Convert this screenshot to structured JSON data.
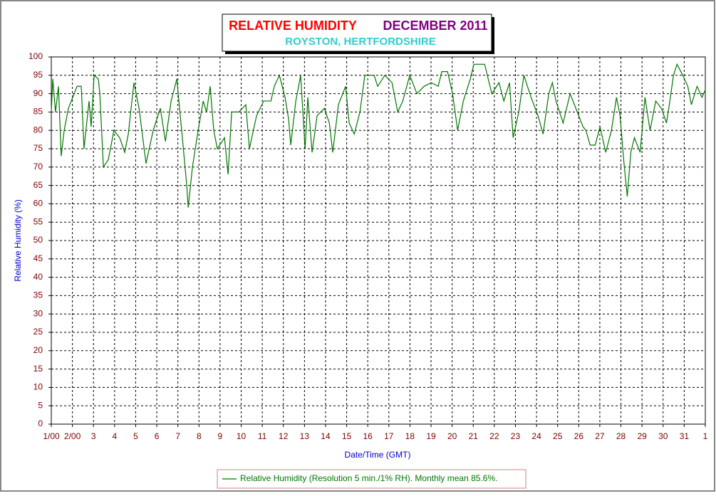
{
  "chart_data": {
    "type": "line",
    "title": "RELATIVE HUMIDITY",
    "title_date": "DECEMBER 2011",
    "subtitle": "ROYSTON, HERTFORDSHIRE",
    "x_label": "Date/Time (GMT)",
    "y_label": "Relative Humidity (%)",
    "xlim": [
      1,
      32
    ],
    "xticks": [
      {
        "value": 1,
        "label": "1/00"
      },
      {
        "value": 2,
        "label": "2/00"
      },
      3,
      4,
      5,
      6,
      7,
      8,
      9,
      10,
      11,
      12,
      13,
      14,
      15,
      16,
      17,
      18,
      19,
      20,
      21,
      22,
      23,
      24,
      25,
      26,
      27,
      28,
      29,
      30,
      31,
      {
        "value": 32,
        "label": "1"
      }
    ],
    "ylim": [
      0,
      100
    ],
    "yticks": [
      0,
      5,
      10,
      15,
      20,
      25,
      30,
      35,
      40,
      45,
      50,
      55,
      60,
      65,
      70,
      75,
      80,
      85,
      90,
      95,
      100
    ],
    "grid": true,
    "legend": "bottom",
    "x": [
      1.0,
      1.07,
      1.2,
      1.34,
      1.47,
      1.61,
      1.81,
      1.95,
      2.22,
      2.42,
      2.55,
      2.79,
      2.89,
      3.03,
      3.23,
      3.3,
      3.47,
      3.7,
      3.97,
      4.24,
      4.48,
      4.65,
      4.82,
      4.92,
      5.16,
      5.49,
      5.83,
      6.17,
      6.41,
      6.68,
      6.95,
      7.18,
      7.42,
      7.49,
      7.69,
      7.96,
      8.2,
      8.36,
      8.53,
      8.7,
      8.87,
      9.21,
      9.38,
      9.55,
      9.89,
      10.22,
      10.39,
      10.73,
      11.07,
      11.41,
      11.57,
      11.81,
      12.08,
      12.25,
      12.35,
      12.59,
      12.82,
      13.03,
      13.16,
      13.36,
      13.6,
      13.94,
      14.18,
      14.34,
      14.61,
      14.95,
      15.12,
      15.36,
      15.63,
      15.86,
      16.3,
      16.47,
      16.81,
      17.15,
      17.42,
      17.66,
      17.99,
      18.33,
      18.67,
      19.01,
      19.34,
      19.51,
      19.78,
      20.02,
      20.26,
      20.53,
      20.86,
      21.03,
      21.54,
      21.88,
      22.22,
      22.45,
      22.72,
      22.89,
      23.16,
      23.4,
      23.74,
      24.07,
      24.31,
      24.58,
      24.75,
      24.92,
      25.26,
      25.59,
      25.93,
      26.2,
      26.34,
      26.54,
      26.78,
      27.01,
      27.28,
      27.55,
      27.79,
      27.96,
      28.13,
      28.3,
      28.47,
      28.64,
      28.91,
      29.14,
      29.38,
      29.65,
      29.92,
      30.16,
      30.32,
      30.49,
      30.66,
      30.93,
      31.17,
      31.34,
      31.61,
      31.84,
      32.0
    ],
    "series": [
      {
        "name": "Relative Humidity (Resolution 5 min./1% RH). Monthly mean 85.6%.",
        "color": "#007700",
        "values": [
          85,
          94,
          85,
          92,
          73,
          80,
          86,
          88,
          92,
          92,
          75,
          88,
          81,
          95,
          94,
          90,
          70,
          72,
          80,
          78,
          74,
          79,
          88,
          93,
          86,
          71,
          80,
          86,
          77,
          88,
          94,
          80,
          65,
          59,
          70,
          80,
          88,
          85,
          92,
          80,
          75,
          78,
          68,
          85,
          85,
          87,
          75,
          84,
          88,
          88,
          92,
          95,
          89,
          83,
          76,
          88,
          95,
          75,
          89,
          74,
          84,
          86,
          82,
          74,
          87,
          92,
          82,
          79,
          85,
          95,
          95,
          92,
          95,
          93,
          85,
          88,
          95,
          90,
          92,
          93,
          92,
          96,
          96,
          90,
          80,
          88,
          94,
          98,
          98,
          90,
          93,
          88,
          93,
          78,
          85,
          95,
          89,
          84,
          79,
          90,
          93,
          88,
          82,
          90,
          85,
          81,
          80,
          76,
          76,
          81,
          74,
          80,
          89,
          84,
          72,
          62,
          74,
          78,
          74,
          89,
          80,
          88,
          86,
          82,
          88,
          95,
          98,
          95,
          92,
          87,
          92,
          89,
          91
        ]
      }
    ]
  }
}
